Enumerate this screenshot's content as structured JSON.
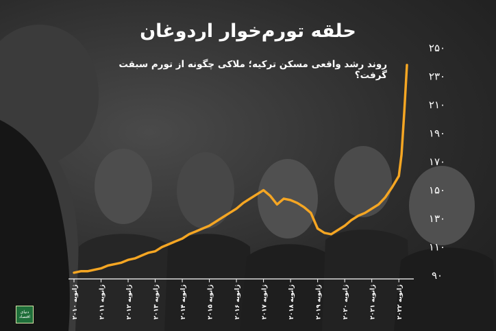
{
  "title": "حلقه تورم‌خوار اردوغان",
  "subtitle": "روند رشد واقعی مسکن ترکیه؛ ملاکی چگونه از تورم سبقت گرفت؟",
  "logo_text": "دنیای اقتصاد",
  "colors": {
    "line": "#f5a623",
    "text": "#ffffff",
    "axis": "#ffffff"
  },
  "chart_data": {
    "type": "line",
    "title": "حلقه تورم‌خوار اردوغان",
    "subtitle": "روند رشد واقعی مسکن ترکیه؛ ملاکی چگونه از تورم سبقت گرفت؟",
    "xlabel": "",
    "ylabel": "",
    "ylim": [
      90,
      250
    ],
    "xlim": [
      2010,
      2022.4
    ],
    "grid": false,
    "legend": "none",
    "y_ticks": [
      90,
      110,
      130,
      150,
      170,
      190,
      210,
      230,
      250
    ],
    "y_tick_labels": [
      "۹۰",
      "۱۱۰",
      "۱۳۰",
      "۱۵۰",
      "۱۷۰",
      "۱۹۰",
      "۲۱۰",
      "۲۳۰",
      "۲۵۰"
    ],
    "x_ticks": [
      2010,
      2011,
      2012,
      2013,
      2014,
      2015,
      2016,
      2017,
      2018,
      2019,
      2020,
      2021,
      2022
    ],
    "x_tick_labels": [
      "ژانویه ۲۰۱۰",
      "ژانویه ۲۰۱۱",
      "ژانویه ۲۰۱۲",
      "ژانویه ۲۰۱۳",
      "ژانویه ۲۰۱۴",
      "ژانویه ۲۰۱۵",
      "ژانویه ۲۰۱۶",
      "ژانویه ۲۰۱۷",
      "ژانویه ۲۰۱۸",
      "ژانویه ۲۰۱۹",
      "ژانویه ۲۰۲۰",
      "ژانویه ۲۰۲۱",
      "ژانویه ۲۰۲۲"
    ],
    "series": [
      {
        "x": [
          2010.0,
          2010.25,
          2010.5,
          2010.75,
          2011.0,
          2011.25,
          2011.5,
          2011.75,
          2012.0,
          2012.25,
          2012.5,
          2012.75,
          2013.0,
          2013.25,
          2013.5,
          2013.75,
          2014.0,
          2014.25,
          2014.5,
          2014.75,
          2015.0,
          2015.25,
          2015.5,
          2015.75,
          2016.0,
          2016.25,
          2016.5,
          2016.75,
          2017.0,
          2017.25,
          2017.5,
          2017.75,
          2018.0,
          2018.25,
          2018.5,
          2018.75,
          2019.0,
          2019.25,
          2019.5,
          2019.75,
          2020.0,
          2020.25,
          2020.5,
          2020.75,
          2021.0,
          2021.25,
          2021.5,
          2021.75,
          2022.0,
          2022.1,
          2022.2,
          2022.3
        ],
        "values": [
          92,
          93,
          93,
          94,
          95,
          97,
          98,
          99,
          101,
          102,
          104,
          106,
          107,
          110,
          112,
          114,
          116,
          119,
          121,
          123,
          125,
          128,
          131,
          134,
          137,
          141,
          144,
          147,
          150,
          146,
          140,
          144,
          143,
          141,
          138,
          134,
          123,
          120,
          119,
          122,
          125,
          129,
          132,
          134,
          137,
          140,
          145,
          152,
          160,
          175,
          205,
          238
        ]
      }
    ]
  }
}
